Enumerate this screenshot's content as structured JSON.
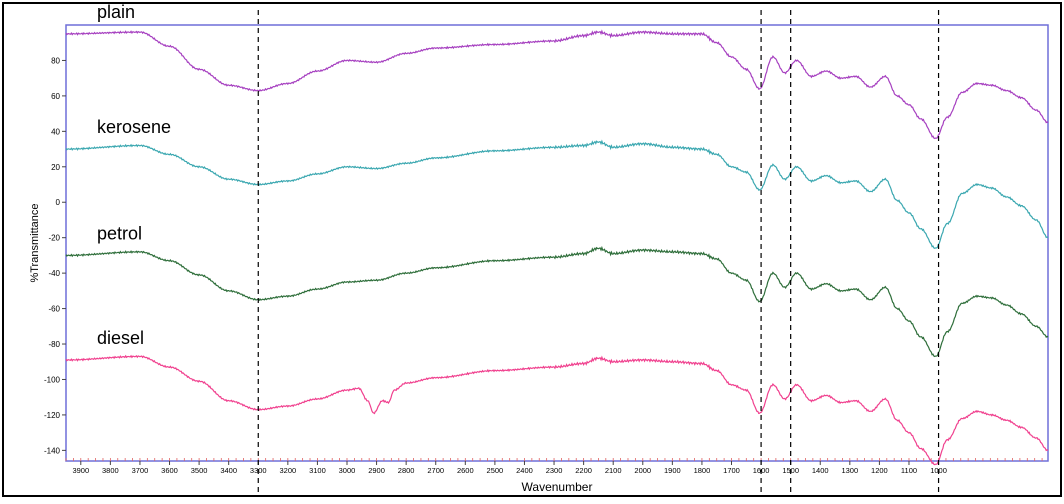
{
  "chart_data": {
    "type": "line",
    "xlabel": "Wavenumber",
    "ylabel": "%Transmittance",
    "xlim": [
      3950,
      630
    ],
    "ylim": [
      -146,
      100
    ],
    "x_ticks": [
      3900,
      3800,
      3700,
      3600,
      3500,
      3400,
      3300,
      3200,
      3100,
      3000,
      2900,
      2800,
      2700,
      2600,
      2500,
      2400,
      2300,
      2200,
      2100,
      2000,
      1900,
      1800,
      1700,
      1600,
      1500,
      1400,
      1300,
      1200,
      1100,
      1000
    ],
    "y_ticks": [
      80,
      60,
      40,
      20,
      0,
      -20,
      -40,
      -60,
      -80,
      -100,
      -120,
      -140
    ],
    "reference_lines_x": [
      3300,
      1600,
      1500,
      1000
    ],
    "series": [
      {
        "name": "plain",
        "color": "#a640c0",
        "points": [
          [
            3950,
            95
          ],
          [
            3700,
            96
          ],
          [
            3600,
            88
          ],
          [
            3500,
            75
          ],
          [
            3400,
            66
          ],
          [
            3300,
            63
          ],
          [
            3200,
            67
          ],
          [
            3100,
            74
          ],
          [
            3000,
            80
          ],
          [
            2900,
            79
          ],
          [
            2800,
            84
          ],
          [
            2700,
            87
          ],
          [
            2500,
            89
          ],
          [
            2300,
            91
          ],
          [
            2200,
            94
          ],
          [
            2150,
            96
          ],
          [
            2100,
            94
          ],
          [
            2000,
            96
          ],
          [
            1900,
            95
          ],
          [
            1800,
            95
          ],
          [
            1750,
            90
          ],
          [
            1700,
            82
          ],
          [
            1650,
            75
          ],
          [
            1605,
            64
          ],
          [
            1560,
            82
          ],
          [
            1520,
            73
          ],
          [
            1480,
            80
          ],
          [
            1430,
            71
          ],
          [
            1380,
            74
          ],
          [
            1330,
            70
          ],
          [
            1280,
            71
          ],
          [
            1230,
            65
          ],
          [
            1180,
            71
          ],
          [
            1140,
            60
          ],
          [
            1100,
            55
          ],
          [
            1060,
            47
          ],
          [
            1010,
            36
          ],
          [
            970,
            48
          ],
          [
            920,
            62
          ],
          [
            870,
            67
          ],
          [
            820,
            66
          ],
          [
            770,
            63
          ],
          [
            720,
            59
          ],
          [
            670,
            52
          ],
          [
            630,
            45
          ]
        ]
      },
      {
        "name": "kerosene",
        "color": "#3aa7b0",
        "points": [
          [
            3950,
            30
          ],
          [
            3700,
            32
          ],
          [
            3600,
            27
          ],
          [
            3500,
            20
          ],
          [
            3400,
            13
          ],
          [
            3300,
            10
          ],
          [
            3200,
            12
          ],
          [
            3100,
            16
          ],
          [
            3000,
            20
          ],
          [
            2900,
            19
          ],
          [
            2800,
            22
          ],
          [
            2700,
            25
          ],
          [
            2500,
            29
          ],
          [
            2300,
            31
          ],
          [
            2200,
            32
          ],
          [
            2150,
            34
          ],
          [
            2100,
            31
          ],
          [
            2000,
            33
          ],
          [
            1900,
            31
          ],
          [
            1800,
            30
          ],
          [
            1750,
            27
          ],
          [
            1700,
            20
          ],
          [
            1650,
            17
          ],
          [
            1605,
            7
          ],
          [
            1560,
            21
          ],
          [
            1520,
            13
          ],
          [
            1480,
            20
          ],
          [
            1430,
            12
          ],
          [
            1380,
            15
          ],
          [
            1330,
            11
          ],
          [
            1280,
            12
          ],
          [
            1230,
            6
          ],
          [
            1180,
            13
          ],
          [
            1140,
            1
          ],
          [
            1100,
            -6
          ],
          [
            1060,
            -15
          ],
          [
            1010,
            -26
          ],
          [
            970,
            -12
          ],
          [
            920,
            5
          ],
          [
            870,
            10
          ],
          [
            820,
            8
          ],
          [
            770,
            3
          ],
          [
            720,
            -2
          ],
          [
            670,
            -10
          ],
          [
            630,
            -20
          ]
        ]
      },
      {
        "name": "petrol",
        "color": "#2e6e3a",
        "points": [
          [
            3950,
            -30
          ],
          [
            3700,
            -28
          ],
          [
            3600,
            -33
          ],
          [
            3500,
            -41
          ],
          [
            3400,
            -50
          ],
          [
            3300,
            -55
          ],
          [
            3200,
            -53
          ],
          [
            3100,
            -49
          ],
          [
            3000,
            -45
          ],
          [
            2900,
            -44
          ],
          [
            2800,
            -40
          ],
          [
            2700,
            -37
          ],
          [
            2500,
            -33
          ],
          [
            2300,
            -31
          ],
          [
            2200,
            -29
          ],
          [
            2150,
            -26
          ],
          [
            2100,
            -29
          ],
          [
            2000,
            -27
          ],
          [
            1900,
            -28
          ],
          [
            1800,
            -29
          ],
          [
            1750,
            -32
          ],
          [
            1700,
            -40
          ],
          [
            1650,
            -44
          ],
          [
            1605,
            -56
          ],
          [
            1560,
            -40
          ],
          [
            1520,
            -48
          ],
          [
            1480,
            -40
          ],
          [
            1430,
            -49
          ],
          [
            1380,
            -46
          ],
          [
            1330,
            -50
          ],
          [
            1280,
            -49
          ],
          [
            1230,
            -55
          ],
          [
            1180,
            -48
          ],
          [
            1140,
            -60
          ],
          [
            1100,
            -67
          ],
          [
            1060,
            -76
          ],
          [
            1010,
            -87
          ],
          [
            970,
            -73
          ],
          [
            920,
            -57
          ],
          [
            870,
            -53
          ],
          [
            820,
            -54
          ],
          [
            770,
            -58
          ],
          [
            720,
            -63
          ],
          [
            670,
            -70
          ],
          [
            630,
            -76
          ]
        ]
      },
      {
        "name": "diesel",
        "color": "#f0408e",
        "points": [
          [
            3950,
            -89
          ],
          [
            3700,
            -87
          ],
          [
            3600,
            -93
          ],
          [
            3500,
            -101
          ],
          [
            3400,
            -112
          ],
          [
            3300,
            -117
          ],
          [
            3200,
            -115
          ],
          [
            3100,
            -111
          ],
          [
            3000,
            -106
          ],
          [
            2960,
            -105
          ],
          [
            2930,
            -112
          ],
          [
            2910,
            -119
          ],
          [
            2880,
            -112
          ],
          [
            2860,
            -113
          ],
          [
            2840,
            -106
          ],
          [
            2800,
            -102
          ],
          [
            2700,
            -99
          ],
          [
            2500,
            -95
          ],
          [
            2300,
            -93
          ],
          [
            2200,
            -91
          ],
          [
            2150,
            -88
          ],
          [
            2100,
            -90
          ],
          [
            2000,
            -89
          ],
          [
            1900,
            -90
          ],
          [
            1800,
            -91
          ],
          [
            1750,
            -95
          ],
          [
            1700,
            -103
          ],
          [
            1650,
            -106
          ],
          [
            1605,
            -119
          ],
          [
            1560,
            -103
          ],
          [
            1520,
            -111
          ],
          [
            1480,
            -103
          ],
          [
            1430,
            -112
          ],
          [
            1380,
            -109
          ],
          [
            1330,
            -113
          ],
          [
            1280,
            -112
          ],
          [
            1230,
            -118
          ],
          [
            1180,
            -111
          ],
          [
            1140,
            -123
          ],
          [
            1100,
            -130
          ],
          [
            1060,
            -139
          ],
          [
            1010,
            -148
          ],
          [
            970,
            -134
          ],
          [
            920,
            -122
          ],
          [
            870,
            -118
          ],
          [
            820,
            -120
          ],
          [
            770,
            -123
          ],
          [
            720,
            -127
          ],
          [
            670,
            -133
          ],
          [
            630,
            -140
          ]
        ]
      }
    ]
  }
}
